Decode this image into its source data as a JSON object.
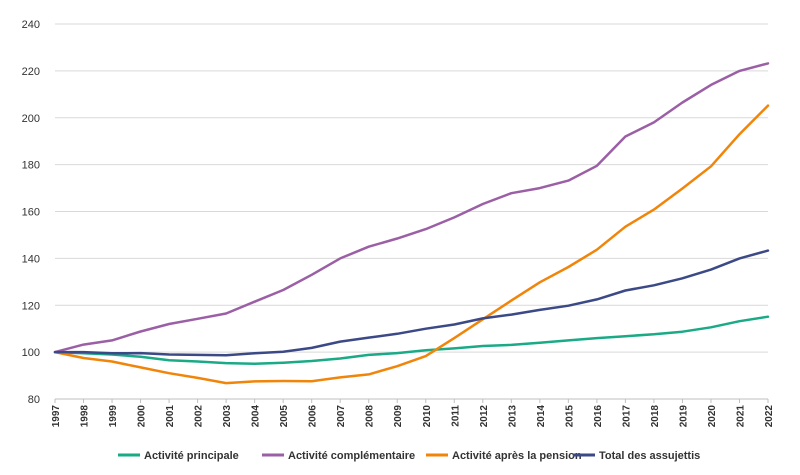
{
  "chart_data": {
    "type": "line",
    "x": [
      "1997",
      "1998",
      "1999",
      "2000",
      "2001",
      "2002",
      "2003",
      "2004",
      "2005",
      "2006",
      "2007",
      "2008",
      "2009",
      "2010",
      "2011",
      "2012",
      "2013",
      "2014",
      "2015",
      "2016",
      "2017",
      "2018",
      "2019",
      "2020",
      "2021",
      "2022"
    ],
    "ylim": [
      80,
      240
    ],
    "yticks": [
      80,
      100,
      120,
      140,
      160,
      180,
      200,
      220,
      240
    ],
    "grid": true,
    "legend_position": "bottom",
    "series": [
      {
        "name": "Activité principale",
        "color": "#1aaa86",
        "values": [
          100,
          99.5,
          99,
          98,
          96.5,
          96,
          95.3,
          95,
          95.5,
          96.2,
          97.3,
          98.8,
          99.6,
          100.8,
          101.6,
          102.6,
          103.1,
          104,
          105,
          106,
          106.8,
          107.6,
          108.7,
          110.6,
          113.2,
          115.1
        ]
      },
      {
        "name": "Activité complémentaire",
        "color": "#9b5fa5",
        "values": [
          100,
          103.2,
          105,
          108.8,
          112,
          114.2,
          116.5,
          121.5,
          126.5,
          133,
          140,
          145,
          148.5,
          152.5,
          157.5,
          163.2,
          167.8,
          170,
          173.2,
          179.5,
          192,
          198,
          206.5,
          214,
          220,
          223.2
        ]
      },
      {
        "name": "Activité après la pension",
        "color": "#f0850a",
        "values": [
          100,
          97.5,
          96,
          93.5,
          91,
          89,
          86.8,
          87.5,
          87.7,
          87.6,
          89.2,
          90.5,
          94,
          98.3,
          106,
          114,
          122,
          129.8,
          136.3,
          143.7,
          153.5,
          160.8,
          169.8,
          179.3,
          193,
          205.2
        ]
      },
      {
        "name": "Total des assujettis",
        "color": "#3b4a86",
        "values": [
          100,
          100,
          99.5,
          99.6,
          99,
          98.8,
          98.7,
          99.5,
          100.2,
          101.8,
          104.5,
          106.2,
          107.8,
          110,
          111.8,
          114.4,
          116,
          118,
          119.8,
          122.5,
          126.3,
          128.5,
          131.5,
          135.2,
          140,
          143.3
        ]
      }
    ]
  }
}
